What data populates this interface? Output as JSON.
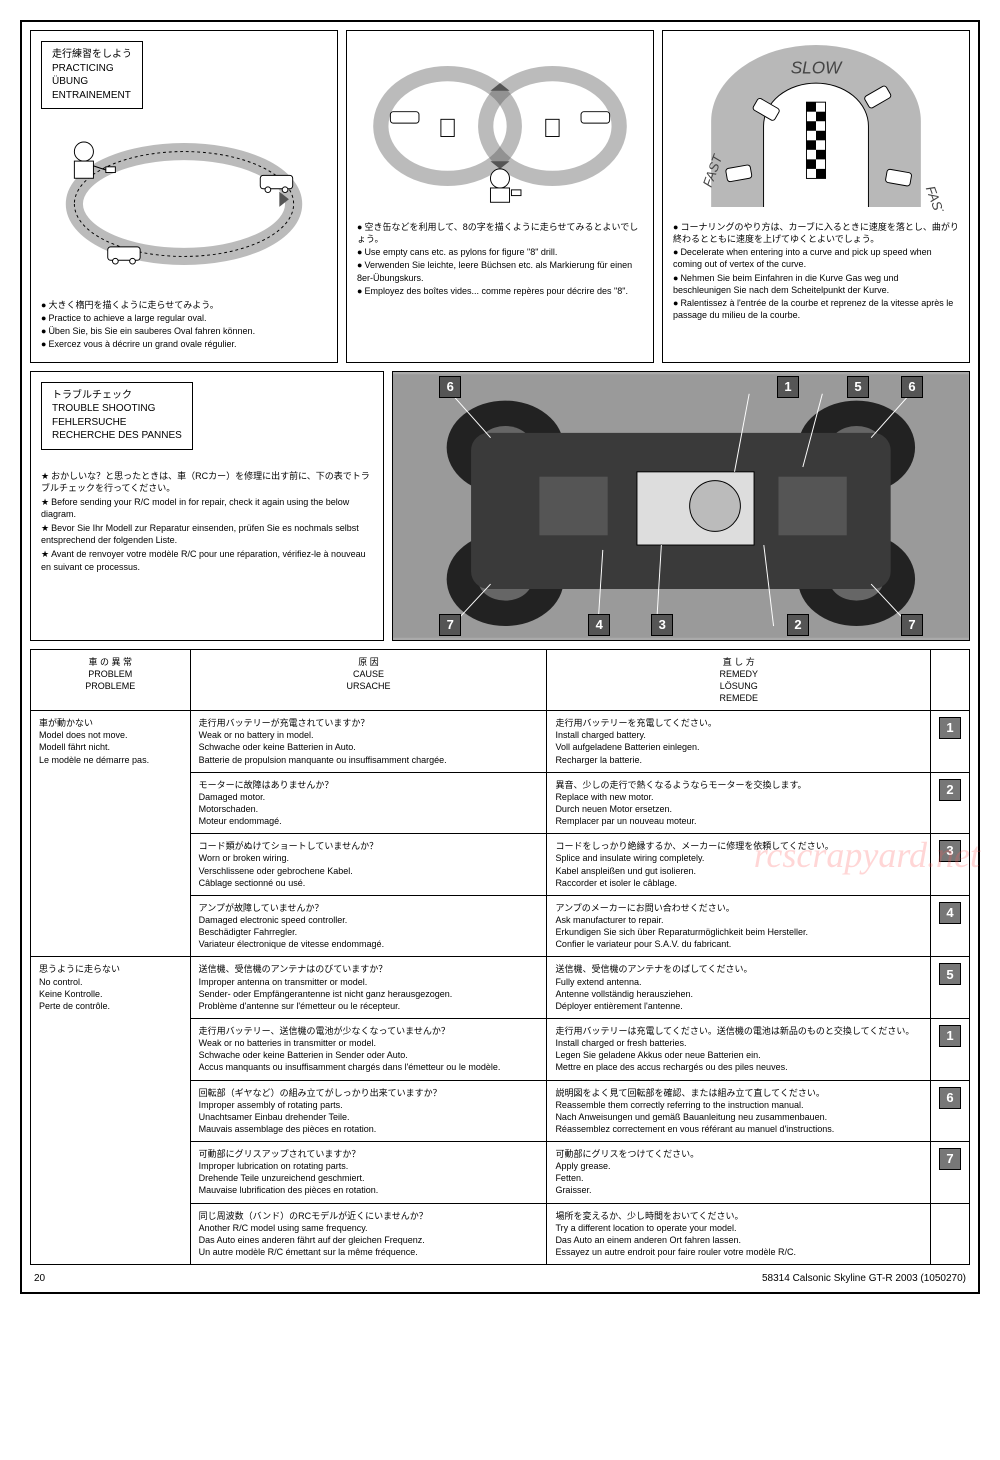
{
  "practicing": {
    "header": {
      "jp": "走行練習をしよう",
      "en": "PRACTICING",
      "de": "ÜBUNG",
      "fr": "ENTRAINEMENT"
    },
    "panel1": {
      "jp": "大きく楕円を描くように走らせてみよう。",
      "en": "Practice to achieve a large regular oval.",
      "de": "Üben Sie, bis Sie ein sauberes Oval fahren können.",
      "fr": "Exercez vous à décrire un grand ovale régulier."
    },
    "panel2": {
      "jp": "空き缶などを利用して、8の字を描くように走らせてみるとよいでしょう。",
      "en": "Use empty cans etc. as pylons for figure \"8\" drill.",
      "de": "Verwenden Sie leichte, leere Büchsen etc. als Markierung für einen 8er-Übungskurs.",
      "fr": "Employez des boîtes vides... comme repères pour décrire des \"8\"."
    },
    "panel3": {
      "slow": "SLOW",
      "fast_left": "FAST",
      "fast_right": "FAST",
      "jp": "コーナリングのやり方は、カーブに入るときに速度を落とし、曲がり終わるとともに速度を上げてゆくとよいでしょう。",
      "en": "Decelerate when entering into a curve and pick up speed when coming out of vertex of the curve.",
      "de": "Nehmen Sie beim Einfahren in die Kurve Gas weg und beschleunigen Sie nach dem Scheitelpunkt der Kurve.",
      "fr": "Ralentissez à l'entrée de la courbe et reprenez de la vitesse après le passage du milieu de la courbe."
    }
  },
  "trouble_shooting": {
    "header": {
      "jp": "トラブルチェック",
      "en": "TROUBLE SHOOTING",
      "de": "FEHLERSUCHE",
      "fr": "RECHERCHE DES PANNES"
    },
    "intro": {
      "jp": "おかしいな？と思ったときは、車（RCカー）を修理に出す前に、下の表でトラブルチェックを行ってください。",
      "en": "Before sending your R/C model in for repair, check it again using the below diagram.",
      "de": "Bevor Sie Ihr Modell zur Reparatur einsenden, prüfen Sie es nochmals selbst entsprechend der folgenden Liste.",
      "fr": "Avant de renvoyer votre modèle R/C pour une réparation, vérifiez-le à nouveau en suivant ce processus."
    },
    "callouts": [
      "1",
      "2",
      "3",
      "4",
      "5",
      "6",
      "7"
    ],
    "table": {
      "headers": {
        "problem": {
          "jp": "車 の 異 常",
          "en": "PROBLEM",
          "fr": "PROBLEME"
        },
        "cause": {
          "jp": "原 因",
          "en": "CAUSE",
          "de": "URSACHE"
        },
        "remedy": {
          "jp": "直 し 方",
          "en": "REMEDY",
          "de": "LÖSUNG",
          "fr": "REMEDE"
        }
      },
      "groups": [
        {
          "problem": {
            "jp": "車が動かない",
            "en": "Model does not move.",
            "de": "Modell fährt nicht.",
            "fr": "Le modèle ne démarre pas."
          },
          "rows": [
            {
              "cause": {
                "jp": "走行用バッテリーが充電されていますか？",
                "en": "Weak or no battery in model.",
                "de": "Schwache oder keine Batterien in Auto.",
                "fr": "Batterie de propulsion manquante ou insuffisamment chargée."
              },
              "remedy": {
                "jp": "走行用バッテリーを充電してください。",
                "en": "Install charged battery.",
                "de": "Voll aufgeladene Batterien einlegen.",
                "fr": "Recharger la batterie."
              },
              "num": "1"
            },
            {
              "cause": {
                "jp": "モーターに故障はありませんか？",
                "en": "Damaged motor.",
                "de": "Motorschaden.",
                "fr": "Moteur endommagé."
              },
              "remedy": {
                "jp": "異音、少しの走行で熱くなるようならモーターを交換します。",
                "en": "Replace with new motor.",
                "de": "Durch neuen Motor ersetzen.",
                "fr": "Remplacer par un nouveau moteur."
              },
              "num": "2"
            },
            {
              "cause": {
                "jp": "コード類がぬけてショートしていませんか？",
                "en": "Worn or broken wiring.",
                "de": "Verschlissene oder gebrochene Kabel.",
                "fr": "Câblage sectionné ou usé."
              },
              "remedy": {
                "jp": "コードをしっかり絶縁するか、メーカーに修理を依頼してください。",
                "en": "Splice and insulate wiring completely.",
                "de": "Kabel anspleißen und gut isolieren.",
                "fr": "Raccorder et isoler le câblage."
              },
              "num": "3"
            },
            {
              "cause": {
                "jp": "アンプが故障していませんか？",
                "en": "Damaged electronic speed controller.",
                "de": "Beschädigter Fahrregler.",
                "fr": "Variateur électronique de vitesse endommagé."
              },
              "remedy": {
                "jp": "アンプのメーカーにお問い合わせください。",
                "en": "Ask manufacturer to repair.",
                "de": "Erkundigen Sie sich über Reparaturmöglichkeit beim Hersteller.",
                "fr": "Confier le variateur pour S.A.V. du fabricant."
              },
              "num": "4"
            }
          ]
        },
        {
          "problem": {
            "jp": "思うように走らない",
            "en": "No control.",
            "de": "Keine Kontrolle.",
            "fr": "Perte de contrôle."
          },
          "rows": [
            {
              "cause": {
                "jp": "送信機、受信機のアンテナはのびていますか？",
                "en": "Improper antenna on transmitter or model.",
                "de": "Sender- oder Empfängerantenne ist nicht ganz herausgezogen.",
                "fr": "Problème d'antenne sur l'émetteur ou le récepteur."
              },
              "remedy": {
                "jp": "送信機、受信機のアンテナをのばしてください。",
                "en": "Fully extend antenna.",
                "de": "Antenne vollständig herausziehen.",
                "fr": "Déployer entièrement l'antenne."
              },
              "num": "5"
            },
            {
              "cause": {
                "jp": "走行用バッテリー、送信機の電池が少なくなっていませんか？",
                "en": "Weak or no batteries in transmitter or model.",
                "de": "Schwache oder keine Batterien in Sender oder Auto.",
                "fr": "Accus manquants ou insuffisamment chargés dans l'émetteur ou le modèle."
              },
              "remedy": {
                "jp": "走行用バッテリーは充電してください。送信機の電池は新品のものと交換してください。",
                "en": "Install charged or fresh batteries.",
                "de": "Legen Sie geladene Akkus oder neue Batterien ein.",
                "fr": "Mettre en place des accus rechargés ou des piles neuves."
              },
              "num": "1"
            },
            {
              "cause": {
                "jp": "回転部（ギヤなど）の組み立てがしっかり出来ていますか？",
                "en": "Improper assembly of rotating parts.",
                "de": "Unachtsamer Einbau drehender Teile.",
                "fr": "Mauvais assemblage des pièces en rotation."
              },
              "remedy": {
                "jp": "説明図をよく見て回転部を確認、または組み立て直してください。",
                "en": "Reassemble them correctly referring to the instruction manual.",
                "de": "Nach Anweisungen und gemäß Bauanleitung neu zusammenbauen.",
                "fr": "Réassemblez correctement en vous référant au manuel d'instructions."
              },
              "num": "6"
            },
            {
              "cause": {
                "jp": "可動部にグリスアップされていますか？",
                "en": "Improper lubrication on rotating parts.",
                "de": "Drehende Teile unzureichend geschmiert.",
                "fr": "Mauvaise lubrification des pièces en rotation."
              },
              "remedy": {
                "jp": "可動部にグリスをつけてください。",
                "en": "Apply grease.",
                "de": "Fetten.",
                "fr": "Graisser."
              },
              "num": "7"
            },
            {
              "cause": {
                "jp": "同じ周波数（バンド）のRCモデルが近くにいませんか？",
                "en": "Another R/C model using same frequency.",
                "de": "Das Auto eines anderen fährt auf der gleichen Frequenz.",
                "fr": "Un autre modèle R/C émettant sur la même fréquence."
              },
              "remedy": {
                "jp": "場所を変えるか、少し時間をおいてください。",
                "en": "Try a different location to operate your model.",
                "de": "Das Auto an einem anderen Ort fahren lassen.",
                "fr": "Essayez un autre endroit pour faire rouler votre modèle R/C."
              },
              "num": ""
            }
          ]
        }
      ]
    }
  },
  "footer": {
    "page": "20",
    "title": "58314  Calsonic Skyline GT-R 2003 (1050270)"
  },
  "watermark": "rcscrapyard.net",
  "colors": {
    "border": "#000000",
    "numbox_bg": "#777777",
    "numbox_fg": "#ffffff",
    "chassis_bg": "#aaaaaa"
  }
}
